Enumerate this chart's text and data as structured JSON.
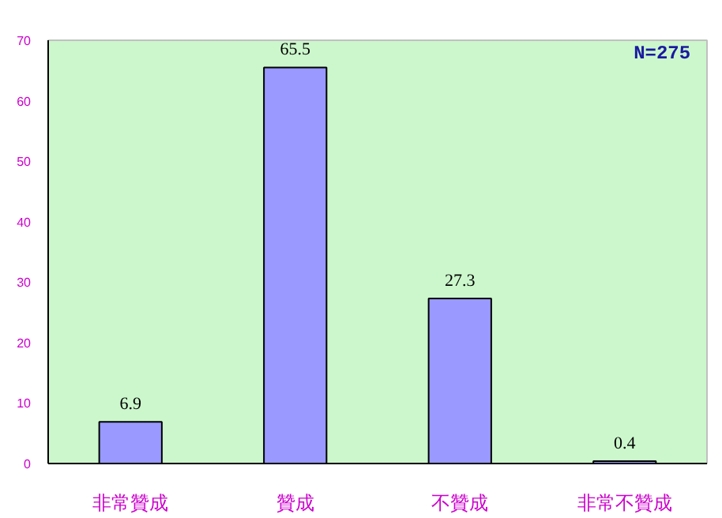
{
  "chart_data": {
    "type": "bar",
    "categories": [
      "非常贊成",
      "贊成",
      "不贊成",
      "非常不贊成"
    ],
    "values": [
      6.9,
      65.5,
      27.3,
      0.4
    ],
    "color": "#9999ff",
    "ylim": [
      0,
      70
    ],
    "yticks": [
      0,
      10,
      20,
      30,
      40,
      50,
      60,
      70
    ],
    "grid": false,
    "data_labels": true,
    "annotations": [
      "N=275"
    ]
  }
}
